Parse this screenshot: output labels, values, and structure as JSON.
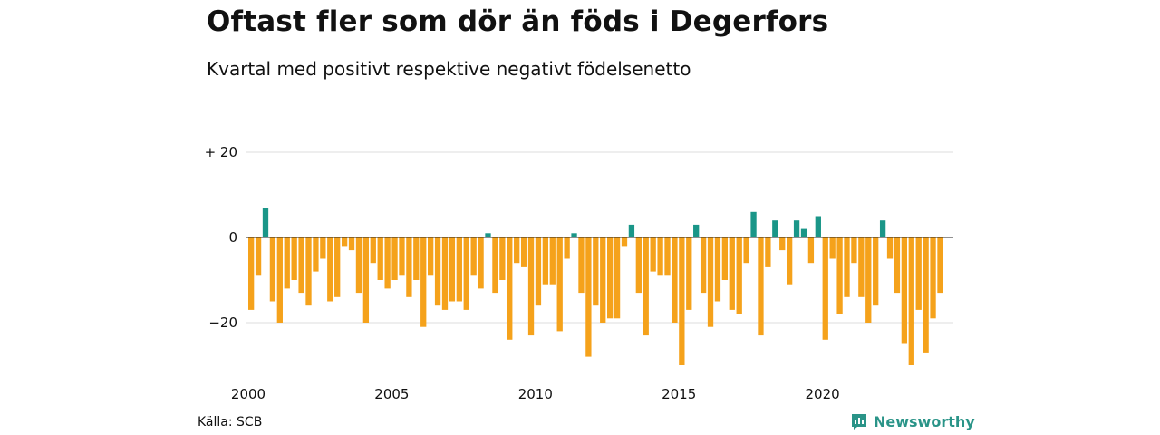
{
  "title": "Oftast fler som dör än föds i Degerfors",
  "subtitle": "Kvartal med positivt respektive negativt födelsenetto",
  "source": "Källa: SCB",
  "brand": {
    "name": "Newsworthy",
    "color": "#2a9488",
    "icon": "newsworthy-logo-icon"
  },
  "colors": {
    "positive": "#1a9688",
    "negative": "#f5a21b",
    "grid": "#dddddd",
    "zero": "#222222"
  },
  "chart_data": {
    "type": "bar",
    "ylim": [
      -31,
      22
    ],
    "y_ticks": [
      {
        "value": 20,
        "label": "+ 20"
      },
      {
        "value": 0,
        "label": "0"
      },
      {
        "value": -20,
        "label": "−20"
      }
    ],
    "x_start_year": 2000,
    "x_ticks": [
      "2000",
      "2005",
      "2010",
      "2015",
      "2020"
    ],
    "grid": true,
    "values": [
      -17,
      -9,
      7,
      -15,
      -20,
      -12,
      -10,
      -13,
      -16,
      -8,
      -5,
      -15,
      -14,
      -2,
      -3,
      -13,
      -20,
      -6,
      -10,
      -12,
      -10,
      -9,
      -14,
      -10,
      -21,
      -9,
      -16,
      -17,
      -15,
      -15,
      -17,
      -9,
      -12,
      1,
      -13,
      -10,
      -24,
      -6,
      -7,
      -23,
      -16,
      -11,
      -11,
      -22,
      -5,
      1,
      -13,
      -28,
      -16,
      -20,
      -19,
      -19,
      -2,
      3,
      -13,
      -23,
      -8,
      -9,
      -9,
      -20,
      -30,
      -17,
      3,
      -13,
      -21,
      -15,
      -10,
      -17,
      -18,
      -6,
      6,
      -23,
      -7,
      4,
      -3,
      -11,
      4,
      2,
      -6,
      5,
      -24,
      -5,
      -18,
      -14,
      -6,
      -14,
      -20,
      -16,
      4,
      -5,
      -13,
      -25,
      -30,
      -17,
      -27,
      -19,
      -13
    ]
  }
}
